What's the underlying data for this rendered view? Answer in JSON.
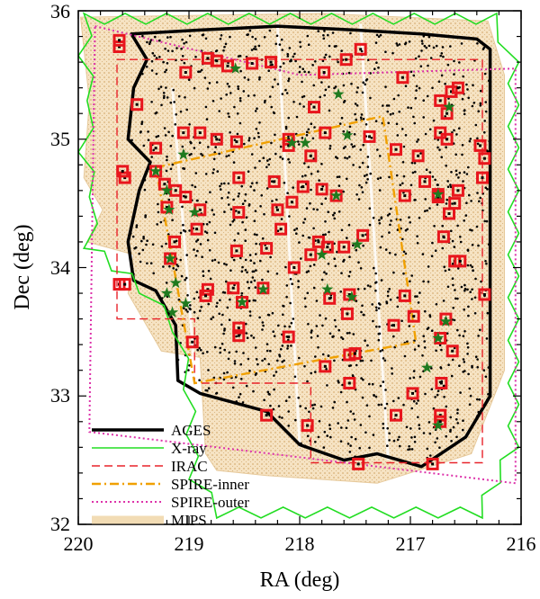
{
  "chart_data": {
    "type": "scatter",
    "xlabel": "RA (deg)",
    "ylabel": "Dec (deg)",
    "xlim": [
      220,
      216
    ],
    "ylim": [
      32,
      36
    ],
    "xticks": [
      "220",
      "219",
      "218",
      "217",
      "216"
    ],
    "yticks": [
      "32",
      "33",
      "34",
      "35",
      "36"
    ],
    "grid": false,
    "legend_position": "bottom-left",
    "legend": [
      {
        "label": "AGES",
        "color": "#000000",
        "style": "solid-thick"
      },
      {
        "label": "X-ray",
        "color": "#22dd22",
        "style": "solid"
      },
      {
        "label": "IRAC",
        "color": "#e8232a",
        "style": "dashed"
      },
      {
        "label": "SPIRE-inner",
        "color": "#f0a000",
        "style": "dash-dot"
      },
      {
        "label": "SPIRE-outer",
        "color": "#dd33aa",
        "style": "dotted"
      },
      {
        "label": "MIPS",
        "color": "#f2dcb4",
        "style": "band"
      }
    ],
    "regions": {
      "irac": [
        [
          219.65,
          35.62
        ],
        [
          216.35,
          35.62
        ],
        [
          216.35,
          32.48
        ],
        [
          217.9,
          32.48
        ],
        [
          217.9,
          33.1
        ],
        [
          218.95,
          33.1
        ],
        [
          218.95,
          33.6
        ],
        [
          219.65,
          33.6
        ]
      ],
      "spire_inner": [
        [
          219.3,
          34.78
        ],
        [
          217.25,
          35.18
        ],
        [
          216.95,
          33.42
        ],
        [
          218.95,
          33.1
        ]
      ],
      "spire_outer": [
        [
          219.85,
          35.88
        ],
        [
          218.0,
          35.5
        ],
        [
          216.05,
          35.55
        ],
        [
          216.05,
          32.32
        ],
        [
          219.9,
          32.72
        ]
      ],
      "ages": [
        [
          219.52,
          35.82
        ],
        [
          218.9,
          35.85
        ],
        [
          218.2,
          35.88
        ],
        [
          217.5,
          35.85
        ],
        [
          216.9,
          35.82
        ],
        [
          216.4,
          35.78
        ],
        [
          216.28,
          35.7
        ],
        [
          216.28,
          33.0
        ],
        [
          216.5,
          32.68
        ],
        [
          216.9,
          32.45
        ],
        [
          217.3,
          32.55
        ],
        [
          217.6,
          32.5
        ],
        [
          218.0,
          32.62
        ],
        [
          218.3,
          32.88
        ],
        [
          218.6,
          32.95
        ],
        [
          218.9,
          33.02
        ],
        [
          219.1,
          33.12
        ],
        [
          219.12,
          33.55
        ],
        [
          219.3,
          33.82
        ],
        [
          219.5,
          33.9
        ],
        [
          219.55,
          34.2
        ],
        [
          219.45,
          34.6
        ],
        [
          219.35,
          34.82
        ],
        [
          219.55,
          35.0
        ],
        [
          219.5,
          35.4
        ],
        [
          219.38,
          35.62
        ]
      ],
      "mips": [
        [
          219.98,
          35.95
        ],
        [
          217.8,
          35.98
        ],
        [
          216.3,
          35.92
        ],
        [
          216.15,
          35.5
        ],
        [
          216.15,
          33.2
        ],
        [
          216.45,
          32.55
        ],
        [
          217.3,
          32.32
        ],
        [
          218.3,
          32.38
        ],
        [
          218.75,
          32.42
        ],
        [
          218.85,
          32.55
        ],
        [
          218.9,
          33.3
        ],
        [
          219.25,
          33.35
        ],
        [
          219.55,
          33.8
        ],
        [
          219.5,
          34.1
        ],
        [
          219.92,
          34.2
        ],
        [
          219.78,
          34.45
        ],
        [
          219.95,
          34.7
        ],
        [
          219.9,
          35.3
        ]
      ],
      "xray_outer": [
        [
          219.95,
          35.98
        ],
        [
          216.22,
          35.98
        ],
        [
          216.02,
          35.6
        ],
        [
          216.02,
          32.6
        ],
        [
          216.35,
          32.05
        ],
        [
          218.75,
          32.05
        ],
        [
          219.0,
          32.35
        ],
        [
          219.05,
          33.05
        ],
        [
          219.15,
          33.5
        ],
        [
          219.45,
          33.8
        ],
        [
          219.95,
          34.15
        ],
        [
          219.9,
          34.55
        ],
        [
          220.0,
          34.9
        ],
        [
          219.92,
          35.3
        ],
        [
          220.0,
          35.65
        ]
      ]
    },
    "sources_red_squares": [
      [
        219.63,
        35.72
      ],
      [
        219.63,
        35.77
      ],
      [
        219.03,
        35.52
      ],
      [
        218.83,
        35.63
      ],
      [
        218.75,
        35.61
      ],
      [
        218.65,
        35.57
      ],
      [
        218.43,
        35.59
      ],
      [
        218.26,
        35.6
      ],
      [
        217.78,
        35.52
      ],
      [
        217.58,
        35.62
      ],
      [
        217.45,
        35.7
      ],
      [
        217.07,
        35.48
      ],
      [
        216.73,
        35.3
      ],
      [
        216.63,
        35.37
      ],
      [
        216.57,
        35.4
      ],
      [
        216.67,
        35.2
      ],
      [
        219.47,
        35.27
      ],
      [
        217.87,
        35.25
      ],
      [
        217.77,
        35.05
      ],
      [
        217.37,
        35.02
      ],
      [
        218.1,
        35.0
      ],
      [
        218.57,
        34.98
      ],
      [
        218.75,
        35.0
      ],
      [
        218.9,
        35.05
      ],
      [
        219.05,
        35.05
      ],
      [
        219.3,
        34.93
      ],
      [
        216.73,
        35.05
      ],
      [
        216.67,
        35.0
      ],
      [
        216.37,
        34.95
      ],
      [
        216.33,
        34.85
      ],
      [
        217.13,
        34.92
      ],
      [
        216.93,
        34.87
      ],
      [
        217.9,
        34.87
      ],
      [
        218.1,
        34.95
      ],
      [
        218.55,
        34.7
      ],
      [
        219.22,
        34.65
      ],
      [
        219.3,
        34.75
      ],
      [
        219.58,
        34.7
      ],
      [
        219.6,
        34.75
      ],
      [
        219.12,
        34.6
      ],
      [
        219.03,
        34.55
      ],
      [
        218.9,
        34.45
      ],
      [
        218.55,
        34.43
      ],
      [
        218.23,
        34.67
      ],
      [
        217.97,
        34.63
      ],
      [
        217.8,
        34.61
      ],
      [
        217.67,
        34.56
      ],
      [
        217.05,
        34.56
      ],
      [
        216.87,
        34.67
      ],
      [
        216.75,
        34.57
      ],
      [
        216.65,
        34.42
      ],
      [
        216.57,
        34.6
      ],
      [
        216.35,
        34.7
      ],
      [
        216.75,
        34.55
      ],
      [
        216.6,
        34.5
      ],
      [
        218.07,
        34.51
      ],
      [
        218.2,
        34.45
      ],
      [
        218.17,
        34.3
      ],
      [
        218.93,
        34.3
      ],
      [
        219.13,
        34.2
      ],
      [
        217.43,
        34.25
      ],
      [
        217.6,
        34.16
      ],
      [
        217.75,
        34.16
      ],
      [
        217.83,
        34.2
      ],
      [
        217.9,
        34.1
      ],
      [
        218.05,
        34.0
      ],
      [
        218.3,
        34.15
      ],
      [
        218.57,
        34.13
      ],
      [
        219.17,
        34.07
      ],
      [
        216.7,
        34.24
      ],
      [
        216.6,
        34.05
      ],
      [
        216.55,
        34.05
      ],
      [
        219.63,
        33.87
      ],
      [
        219.58,
        33.87
      ],
      [
        218.83,
        33.83
      ],
      [
        218.85,
        33.78
      ],
      [
        218.6,
        33.84
      ],
      [
        218.52,
        33.73
      ],
      [
        218.33,
        33.84
      ],
      [
        217.73,
        33.76
      ],
      [
        217.55,
        33.79
      ],
      [
        217.57,
        33.64
      ],
      [
        217.05,
        33.78
      ],
      [
        216.97,
        33.62
      ],
      [
        216.33,
        33.79
      ],
      [
        217.15,
        33.55
      ],
      [
        216.73,
        33.45
      ],
      [
        216.68,
        33.6
      ],
      [
        218.97,
        33.42
      ],
      [
        218.55,
        33.47
      ],
      [
        218.55,
        33.53
      ],
      [
        218.1,
        33.46
      ],
      [
        217.77,
        33.23
      ],
      [
        217.55,
        33.32
      ],
      [
        217.5,
        33.33
      ],
      [
        217.55,
        33.1
      ],
      [
        216.98,
        33.02
      ],
      [
        216.62,
        33.35
      ],
      [
        216.72,
        33.1
      ],
      [
        216.73,
        32.85
      ],
      [
        216.73,
        32.8
      ],
      [
        218.3,
        32.85
      ],
      [
        217.93,
        32.77
      ],
      [
        217.47,
        32.47
      ],
      [
        216.8,
        32.47
      ],
      [
        217.13,
        32.85
      ],
      [
        219.2,
        34.47
      ]
    ],
    "sources_green_stars": [
      [
        218.58,
        35.55
      ],
      [
        217.65,
        35.35
      ],
      [
        216.65,
        35.25
      ],
      [
        217.57,
        35.03
      ],
      [
        218.07,
        34.97
      ],
      [
        217.95,
        34.97
      ],
      [
        219.05,
        34.88
      ],
      [
        219.3,
        34.75
      ],
      [
        219.2,
        34.6
      ],
      [
        219.18,
        34.45
      ],
      [
        218.95,
        34.43
      ],
      [
        217.67,
        34.56
      ],
      [
        216.75,
        34.57
      ],
      [
        217.48,
        34.18
      ],
      [
        217.8,
        34.1
      ],
      [
        219.2,
        33.8
      ],
      [
        219.12,
        33.88
      ],
      [
        219.03,
        33.72
      ],
      [
        219.15,
        33.65
      ],
      [
        218.33,
        33.83
      ],
      [
        217.53,
        33.77
      ],
      [
        217.75,
        33.83
      ],
      [
        216.75,
        33.45
      ],
      [
        216.68,
        33.58
      ],
      [
        216.85,
        33.22
      ],
      [
        216.75,
        32.77
      ],
      [
        219.17,
        34.07
      ],
      [
        218.52,
        33.73
      ]
    ]
  }
}
